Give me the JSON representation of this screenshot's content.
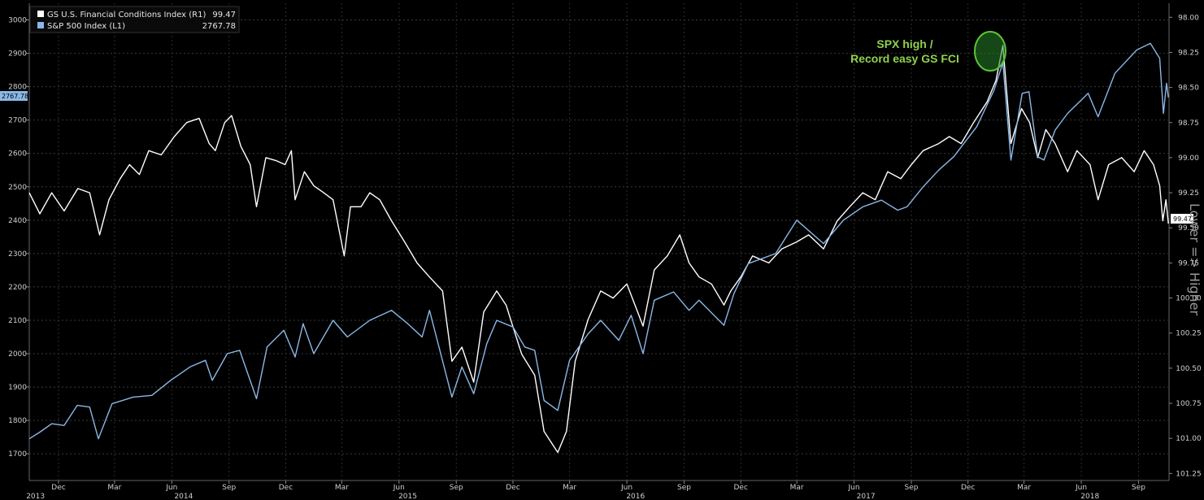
{
  "chart_data": {
    "type": "line",
    "legend": [
      {
        "name": "GS U.S. Financial Conditions Index (R1)",
        "value": "99.47",
        "color": "#ffffff"
      },
      {
        "name": "S&P 500 Index  (L1)",
        "value": "2767.78",
        "color": "#8ab8e6"
      }
    ],
    "last_value_tags": {
      "left": "2767.78",
      "right": "99.47"
    },
    "right_axis_title": "Lower => Higher",
    "annotation": {
      "line1": "SPX high /",
      "line2": "Record easy GS FCI",
      "color": "#8fd14f"
    },
    "y_left": {
      "min": 1620,
      "max": 3050,
      "ticks": [
        "1700",
        "1800",
        "1900",
        "2000",
        "2100",
        "2200",
        "2300",
        "2400",
        "2500",
        "2600",
        "2700",
        "2800",
        "2900",
        "3000"
      ]
    },
    "y_right": {
      "min": 97.9,
      "max": 101.3,
      "inverted": true,
      "ticks": [
        "98.00",
        "98.25",
        "98.50",
        "98.75",
        "99.00",
        "99.25",
        "99.50",
        "99.75",
        "100.00",
        "100.25",
        "100.50",
        "100.75",
        "101.00",
        "101.25"
      ]
    },
    "x": {
      "start": "2013-10-15",
      "end": "2018-10-20",
      "month_ticks": [
        {
          "label": "Dec",
          "date": "2013-12-01"
        },
        {
          "label": "Mar",
          "date": "2014-03-01"
        },
        {
          "label": "Jun",
          "date": "2014-06-01"
        },
        {
          "label": "Sep",
          "date": "2014-09-01"
        },
        {
          "label": "Dec",
          "date": "2014-12-01"
        },
        {
          "label": "Mar",
          "date": "2015-03-01"
        },
        {
          "label": "Jun",
          "date": "2015-06-01"
        },
        {
          "label": "Sep",
          "date": "2015-09-01"
        },
        {
          "label": "Dec",
          "date": "2015-12-01"
        },
        {
          "label": "Mar",
          "date": "2016-03-01"
        },
        {
          "label": "Jun",
          "date": "2016-06-01"
        },
        {
          "label": "Sep",
          "date": "2016-09-01"
        },
        {
          "label": "Dec",
          "date": "2016-12-01"
        },
        {
          "label": "Mar",
          "date": "2017-03-01"
        },
        {
          "label": "Jun",
          "date": "2017-06-01"
        },
        {
          "label": "Sep",
          "date": "2017-09-01"
        },
        {
          "label": "Dec",
          "date": "2017-12-01"
        },
        {
          "label": "Mar",
          "date": "2018-03-01"
        },
        {
          "label": "Jun",
          "date": "2018-06-01"
        },
        {
          "label": "Sep",
          "date": "2018-09-01"
        }
      ],
      "year_ticks": [
        {
          "label": "2013",
          "date": "2013-10-25"
        },
        {
          "label": "2014",
          "date": "2014-06-20"
        },
        {
          "label": "2015",
          "date": "2015-06-15"
        },
        {
          "label": "2016",
          "date": "2016-06-15"
        },
        {
          "label": "2017",
          "date": "2017-06-20"
        },
        {
          "label": "2018",
          "date": "2018-06-15"
        }
      ]
    },
    "series": [
      {
        "name": "GS U.S. Financial Conditions Index (R1)",
        "axis": "right",
        "color": "#ffffff",
        "points": [
          [
            "2013-10-15",
            99.25
          ],
          [
            "2013-11-01",
            99.4
          ],
          [
            "2013-11-20",
            99.25
          ],
          [
            "2013-12-10",
            99.38
          ],
          [
            "2014-01-01",
            99.22
          ],
          [
            "2014-01-20",
            99.25
          ],
          [
            "2014-02-05",
            99.55
          ],
          [
            "2014-02-20",
            99.3
          ],
          [
            "2014-03-10",
            99.15
          ],
          [
            "2014-03-25",
            99.05
          ],
          [
            "2014-04-10",
            99.12
          ],
          [
            "2014-04-25",
            98.95
          ],
          [
            "2014-05-15",
            98.98
          ],
          [
            "2014-06-05",
            98.85
          ],
          [
            "2014-06-25",
            98.75
          ],
          [
            "2014-07-15",
            98.72
          ],
          [
            "2014-07-31",
            98.9
          ],
          [
            "2014-08-10",
            98.95
          ],
          [
            "2014-08-25",
            98.75
          ],
          [
            "2014-09-05",
            98.7
          ],
          [
            "2014-09-20",
            98.92
          ],
          [
            "2014-10-05",
            99.05
          ],
          [
            "2014-10-15",
            99.35
          ],
          [
            "2014-10-30",
            99.0
          ],
          [
            "2014-11-15",
            99.02
          ],
          [
            "2014-11-30",
            99.05
          ],
          [
            "2014-12-10",
            98.95
          ],
          [
            "2014-12-16",
            99.3
          ],
          [
            "2014-12-31",
            99.1
          ],
          [
            "2015-01-15",
            99.2
          ],
          [
            "2015-01-31",
            99.25
          ],
          [
            "2015-02-15",
            99.3
          ],
          [
            "2015-03-05",
            99.7
          ],
          [
            "2015-03-15",
            99.35
          ],
          [
            "2015-04-01",
            99.35
          ],
          [
            "2015-04-15",
            99.25
          ],
          [
            "2015-05-01",
            99.3
          ],
          [
            "2015-05-20",
            99.45
          ],
          [
            "2015-06-10",
            99.6
          ],
          [
            "2015-06-30",
            99.75
          ],
          [
            "2015-07-20",
            99.85
          ],
          [
            "2015-08-10",
            99.95
          ],
          [
            "2015-08-25",
            100.45
          ],
          [
            "2015-09-10",
            100.35
          ],
          [
            "2015-09-29",
            100.6
          ],
          [
            "2015-10-15",
            100.1
          ],
          [
            "2015-11-05",
            99.95
          ],
          [
            "2015-11-20",
            100.05
          ],
          [
            "2015-12-15",
            100.4
          ],
          [
            "2016-01-05",
            100.55
          ],
          [
            "2016-01-20",
            100.95
          ],
          [
            "2016-02-11",
            101.1
          ],
          [
            "2016-02-25",
            100.95
          ],
          [
            "2016-03-10",
            100.45
          ],
          [
            "2016-03-31",
            100.15
          ],
          [
            "2016-04-20",
            99.95
          ],
          [
            "2016-05-10",
            100.0
          ],
          [
            "2016-06-01",
            99.9
          ],
          [
            "2016-06-27",
            100.2
          ],
          [
            "2016-07-15",
            99.8
          ],
          [
            "2016-08-05",
            99.7
          ],
          [
            "2016-08-25",
            99.55
          ],
          [
            "2016-09-09",
            99.75
          ],
          [
            "2016-09-25",
            99.85
          ],
          [
            "2016-10-15",
            99.9
          ],
          [
            "2016-11-04",
            100.05
          ],
          [
            "2016-11-15",
            99.95
          ],
          [
            "2016-12-01",
            99.85
          ],
          [
            "2016-12-20",
            99.7
          ],
          [
            "2017-01-15",
            99.75
          ],
          [
            "2017-02-05",
            99.65
          ],
          [
            "2017-03-01",
            99.6
          ],
          [
            "2017-03-20",
            99.55
          ],
          [
            "2017-04-13",
            99.65
          ],
          [
            "2017-05-05",
            99.45
          ],
          [
            "2017-05-25",
            99.35
          ],
          [
            "2017-06-15",
            99.25
          ],
          [
            "2017-07-05",
            99.3
          ],
          [
            "2017-07-25",
            99.1
          ],
          [
            "2017-08-15",
            99.15
          ],
          [
            "2017-09-01",
            99.05
          ],
          [
            "2017-09-20",
            98.95
          ],
          [
            "2017-10-15",
            98.9
          ],
          [
            "2017-11-01",
            98.85
          ],
          [
            "2017-11-20",
            98.9
          ],
          [
            "2017-12-10",
            98.75
          ],
          [
            "2018-01-01",
            98.6
          ],
          [
            "2018-01-15",
            98.45
          ],
          [
            "2018-01-26",
            98.2
          ],
          [
            "2018-02-08",
            98.9
          ],
          [
            "2018-02-25",
            98.65
          ],
          [
            "2018-03-10",
            98.75
          ],
          [
            "2018-03-23",
            99.0
          ],
          [
            "2018-04-05",
            98.8
          ],
          [
            "2018-04-20",
            98.9
          ],
          [
            "2018-05-10",
            99.1
          ],
          [
            "2018-05-25",
            98.95
          ],
          [
            "2018-06-15",
            99.05
          ],
          [
            "2018-06-28",
            99.3
          ],
          [
            "2018-07-15",
            99.05
          ],
          [
            "2018-08-05",
            99.0
          ],
          [
            "2018-08-25",
            99.1
          ],
          [
            "2018-09-10",
            98.95
          ],
          [
            "2018-09-25",
            99.05
          ],
          [
            "2018-10-05",
            99.2
          ],
          [
            "2018-10-10",
            99.45
          ],
          [
            "2018-10-15",
            99.3
          ],
          [
            "2018-10-19",
            99.47
          ]
        ]
      },
      {
        "name": "S&P 500 Index  (L1)",
        "axis": "left",
        "color": "#8ab8e6",
        "points": [
          [
            "2013-10-15",
            1745
          ],
          [
            "2013-11-01",
            1765
          ],
          [
            "2013-11-20",
            1790
          ],
          [
            "2013-12-10",
            1785
          ],
          [
            "2013-12-31",
            1845
          ],
          [
            "2014-01-20",
            1840
          ],
          [
            "2014-02-03",
            1745
          ],
          [
            "2014-02-25",
            1850
          ],
          [
            "2014-03-31",
            1870
          ],
          [
            "2014-04-30",
            1875
          ],
          [
            "2014-05-30",
            1920
          ],
          [
            "2014-06-30",
            1960
          ],
          [
            "2014-07-25",
            1980
          ],
          [
            "2014-08-05",
            1920
          ],
          [
            "2014-08-29",
            2000
          ],
          [
            "2014-09-18",
            2010
          ],
          [
            "2014-10-15",
            1865
          ],
          [
            "2014-11-01",
            2020
          ],
          [
            "2014-11-28",
            2070
          ],
          [
            "2014-12-16",
            1990
          ],
          [
            "2014-12-29",
            2090
          ],
          [
            "2015-01-15",
            2000
          ],
          [
            "2015-02-15",
            2100
          ],
          [
            "2015-03-10",
            2050
          ],
          [
            "2015-04-15",
            2100
          ],
          [
            "2015-05-20",
            2130
          ],
          [
            "2015-06-15",
            2090
          ],
          [
            "2015-07-08",
            2050
          ],
          [
            "2015-07-20",
            2130
          ],
          [
            "2015-08-25",
            1870
          ],
          [
            "2015-09-10",
            1960
          ],
          [
            "2015-09-29",
            1880
          ],
          [
            "2015-10-20",
            2030
          ],
          [
            "2015-11-05",
            2100
          ],
          [
            "2015-12-01",
            2080
          ],
          [
            "2015-12-20",
            2020
          ],
          [
            "2016-01-05",
            2010
          ],
          [
            "2016-01-20",
            1860
          ],
          [
            "2016-02-11",
            1830
          ],
          [
            "2016-03-01",
            1980
          ],
          [
            "2016-03-31",
            2060
          ],
          [
            "2016-04-20",
            2100
          ],
          [
            "2016-05-19",
            2040
          ],
          [
            "2016-06-08",
            2115
          ],
          [
            "2016-06-27",
            2000
          ],
          [
            "2016-07-15",
            2160
          ],
          [
            "2016-08-15",
            2185
          ],
          [
            "2016-09-09",
            2130
          ],
          [
            "2016-09-25",
            2160
          ],
          [
            "2016-11-04",
            2085
          ],
          [
            "2016-11-20",
            2180
          ],
          [
            "2016-12-13",
            2270
          ],
          [
            "2017-01-26",
            2300
          ],
          [
            "2017-03-01",
            2400
          ],
          [
            "2017-04-13",
            2330
          ],
          [
            "2017-05-15",
            2400
          ],
          [
            "2017-06-15",
            2440
          ],
          [
            "2017-07-15",
            2460
          ],
          [
            "2017-08-10",
            2430
          ],
          [
            "2017-08-25",
            2440
          ],
          [
            "2017-09-20",
            2500
          ],
          [
            "2017-10-15",
            2550
          ],
          [
            "2017-11-08",
            2590
          ],
          [
            "2017-12-15",
            2680
          ],
          [
            "2018-01-12",
            2790
          ],
          [
            "2018-01-26",
            2872
          ],
          [
            "2018-02-08",
            2580
          ],
          [
            "2018-02-26",
            2780
          ],
          [
            "2018-03-09",
            2785
          ],
          [
            "2018-03-23",
            2590
          ],
          [
            "2018-04-02",
            2580
          ],
          [
            "2018-04-20",
            2670
          ],
          [
            "2018-05-10",
            2720
          ],
          [
            "2018-06-12",
            2780
          ],
          [
            "2018-06-28",
            2710
          ],
          [
            "2018-07-25",
            2840
          ],
          [
            "2018-08-29",
            2910
          ],
          [
            "2018-09-20",
            2930
          ],
          [
            "2018-10-05",
            2885
          ],
          [
            "2018-10-11",
            2720
          ],
          [
            "2018-10-16",
            2810
          ],
          [
            "2018-10-19",
            2767.78
          ]
        ]
      }
    ]
  }
}
